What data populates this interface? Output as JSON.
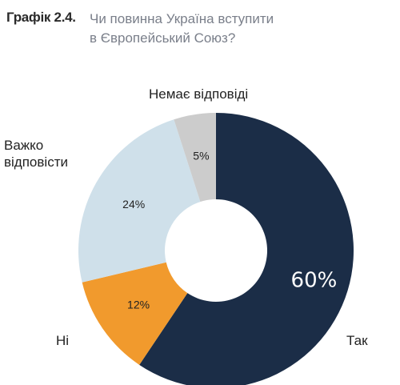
{
  "header": {
    "figure_label": "Графік 2.4.",
    "title_line1": "Чи повинна Україна вступити",
    "title_line2": "в Європейський Союз?"
  },
  "chart_data": {
    "type": "pie",
    "variant": "donut",
    "title": "Чи повинна Україна вступити в Європейський Союз?",
    "slices": [
      {
        "label": "Так",
        "value": 60,
        "value_label": "60%",
        "color": "#1b2d47"
      },
      {
        "label": "Ні",
        "value": 12,
        "value_label": "12%",
        "color": "#f19a2d"
      },
      {
        "label_lines": [
          "Важко",
          "відповісти"
        ],
        "value": 24,
        "value_label": "24%",
        "color": "#cfe0ea"
      },
      {
        "label": "Немає відповіді",
        "value": 5,
        "value_label": "5%",
        "color": "#cccccc"
      }
    ]
  }
}
